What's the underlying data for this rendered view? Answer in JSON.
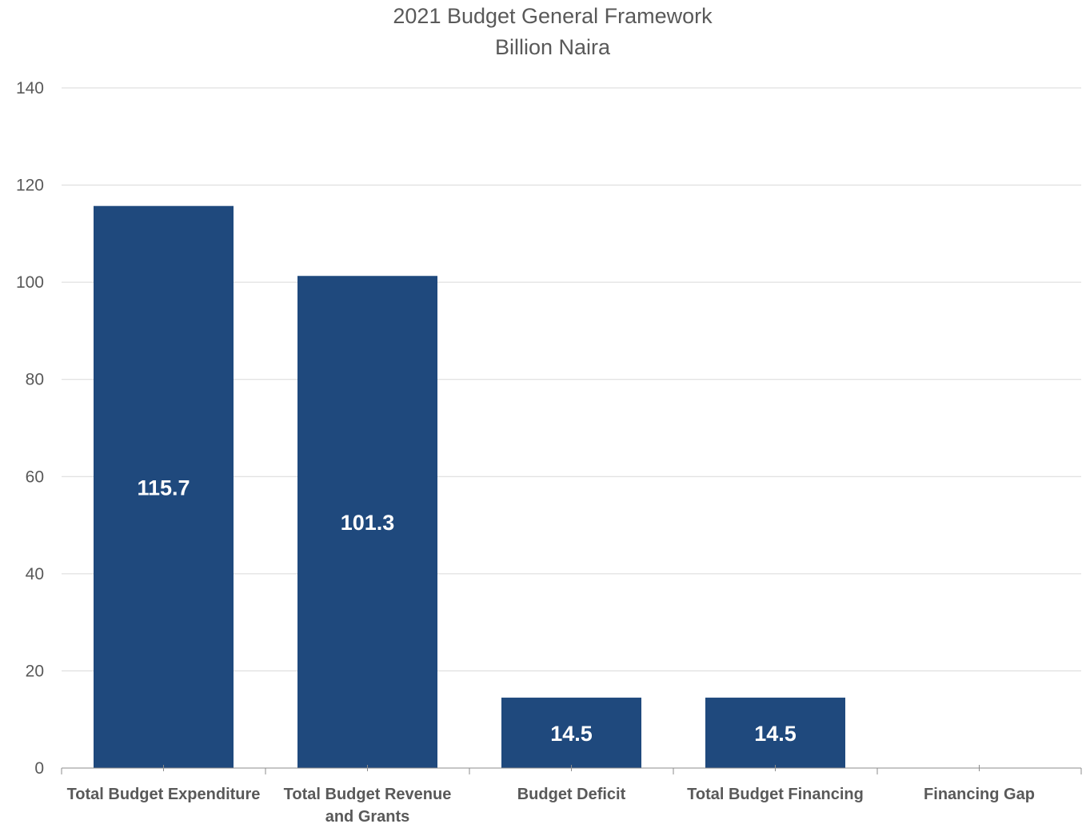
{
  "chart_data": {
    "type": "bar",
    "title": "2021 Budget General Framework",
    "subtitle": "Billion Naira",
    "categories": [
      [
        "Total Budget Expenditure"
      ],
      [
        "Total Budget Revenue",
        "and Grants"
      ],
      [
        "Budget Deficit"
      ],
      [
        "Total Budget Financing"
      ],
      [
        "Financing Gap"
      ]
    ],
    "values": [
      115.7,
      101.3,
      14.5,
      14.5,
      0
    ],
    "data_labels": [
      "115.7",
      "101.3",
      "14.5",
      "14.5",
      ""
    ],
    "ylim": [
      0,
      140
    ],
    "yticks": [
      0,
      20,
      40,
      60,
      80,
      100,
      120,
      140
    ],
    "grid": true,
    "legend": "none",
    "bar_color": "#1f497d",
    "label_color": "#ffffff",
    "text_color": "#595959",
    "grid_color": "#d9d9d9",
    "axis_color": "#8c8c8c"
  }
}
